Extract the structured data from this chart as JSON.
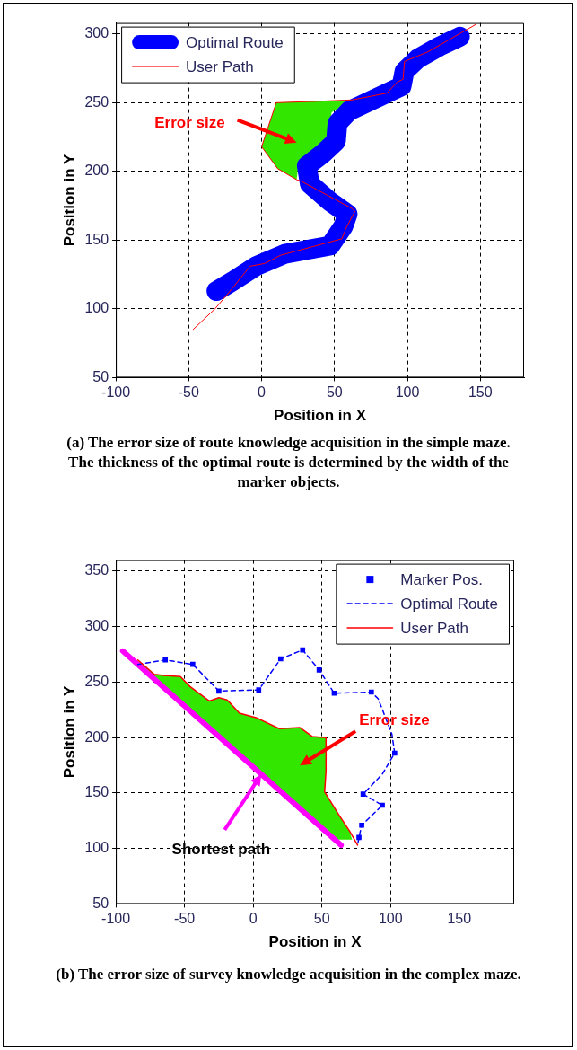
{
  "chart_data": [
    {
      "type": "line",
      "xlabel": "Position in X",
      "ylabel": "Position in Y",
      "xlim": [
        -100,
        180
      ],
      "ylim": [
        50,
        308
      ],
      "xticks": [
        -100,
        -50,
        0,
        50,
        100,
        150
      ],
      "yticks": [
        50,
        100,
        150,
        200,
        250,
        300
      ],
      "grid": true,
      "legend": "top left",
      "marker": "none",
      "line_style": "solid",
      "series": [
        {
          "type": "area",
          "color": "#33e600",
          "x": [
            24,
            11,
            0,
            10,
            38,
            62,
            48,
            46,
            40,
            30,
            25
          ],
          "values": [
            194,
            202,
            218,
            250,
            251,
            252,
            243,
            228,
            218,
            210,
            203
          ]
        },
        {
          "name": "Optimal Route",
          "color": "#0000ff",
          "x": [
            -31,
            -20,
            -4,
            16,
            47,
            56,
            59,
            47,
            33,
            31,
            42,
            51,
            52,
            60,
            78,
            96,
            98,
            107,
            122,
            136
          ],
          "values": [
            113,
            120,
            131,
            140,
            146,
            160,
            169,
            178,
            191,
            204,
            213,
            222,
            235,
            244,
            253,
            262,
            273,
            282,
            291,
            298
          ]
        },
        {
          "name": "User Path",
          "color": "#ff0000",
          "x": [
            -47,
            -32,
            -20,
            -8,
            2,
            13,
            55,
            58,
            64,
            62,
            27,
            24,
            11,
            0,
            10,
            38,
            62,
            86,
            93,
            97,
            98,
            114,
            147
          ],
          "values": [
            85,
            100,
            115,
            131,
            133,
            139,
            151,
            159,
            171,
            173,
            193,
            194,
            202,
            218,
            250,
            251,
            252,
            257,
            265,
            267,
            280,
            287,
            307
          ]
        }
      ],
      "annotations": [
        "Error size",
        "(a) The error size of route knowledge acquisition in the simple maze. The thickness of the optimal route is determined by the width of the marker objects."
      ]
    },
    {
      "type": "line",
      "xlabel": "Position in X",
      "ylabel": "Position in Y",
      "xlim": [
        -100,
        190
      ],
      "ylim": [
        50,
        360
      ],
      "xticks": [
        -100,
        -50,
        0,
        50,
        100,
        150
      ],
      "yticks": [
        50,
        100,
        150,
        200,
        250,
        300,
        350
      ],
      "grid": true,
      "legend": "top right",
      "marker": "none",
      "line_style": "solid",
      "series": [
        {
          "type": "area",
          "color": "#33e600",
          "x": [
            -84,
            -72,
            -65,
            -53,
            -46,
            -32,
            -25,
            -19,
            -10,
            2,
            19,
            34,
            43,
            53,
            53,
            52,
            62,
            70,
            72,
            62,
            -80
          ],
          "values": [
            270,
            257,
            256,
            255,
            246,
            233,
            236,
            234,
            222,
            218,
            208,
            209,
            201,
            200,
            170,
            151,
            131,
            116,
            108,
            108,
            262
          ]
        },
        {
          "color": "#ff00ff",
          "x": [
            -95,
            64
          ],
          "values": [
            278,
            103
          ]
        },
        {
          "name": "Marker Pos.",
          "type": "scatter",
          "marker": "square",
          "color": "#0000ff",
          "x": [
            -64,
            -44,
            -25,
            4,
            20,
            36,
            48,
            59,
            86,
            103,
            94,
            80,
            79,
            77
          ],
          "values": [
            270,
            266,
            242,
            243,
            271,
            279,
            261,
            240,
            241,
            186,
            139,
            149,
            121,
            110
          ]
        },
        {
          "name": "Optimal Route",
          "line_style": "dashed",
          "color": "#0000ff",
          "x": [
            -84,
            -64,
            -44,
            -25,
            4,
            20,
            36,
            48,
            59,
            86,
            91,
            101,
            103,
            94,
            80,
            94,
            79,
            77,
            76
          ],
          "values": [
            266,
            270,
            266,
            242,
            243,
            271,
            279,
            261,
            240,
            241,
            235,
            203,
            186,
            167,
            149,
            139,
            121,
            110,
            103
          ]
        },
        {
          "name": "User Path",
          "color": "#ff0000",
          "x": [
            -84,
            -72,
            -65,
            -53,
            -46,
            -32,
            -25,
            -19,
            -10,
            2,
            19,
            34,
            43,
            53,
            53,
            52,
            62,
            70,
            76
          ],
          "values": [
            270,
            257,
            256,
            255,
            246,
            233,
            236,
            234,
            222,
            218,
            208,
            209,
            201,
            200,
            170,
            151,
            131,
            116,
            103
          ]
        }
      ],
      "annotations": [
        "Error size",
        {
          "text": "Shortest path",
          "x": 6,
          "y": 167
        },
        "(b) The error size of survey knowledge acquisition in the complex maze."
      ]
    }
  ]
}
